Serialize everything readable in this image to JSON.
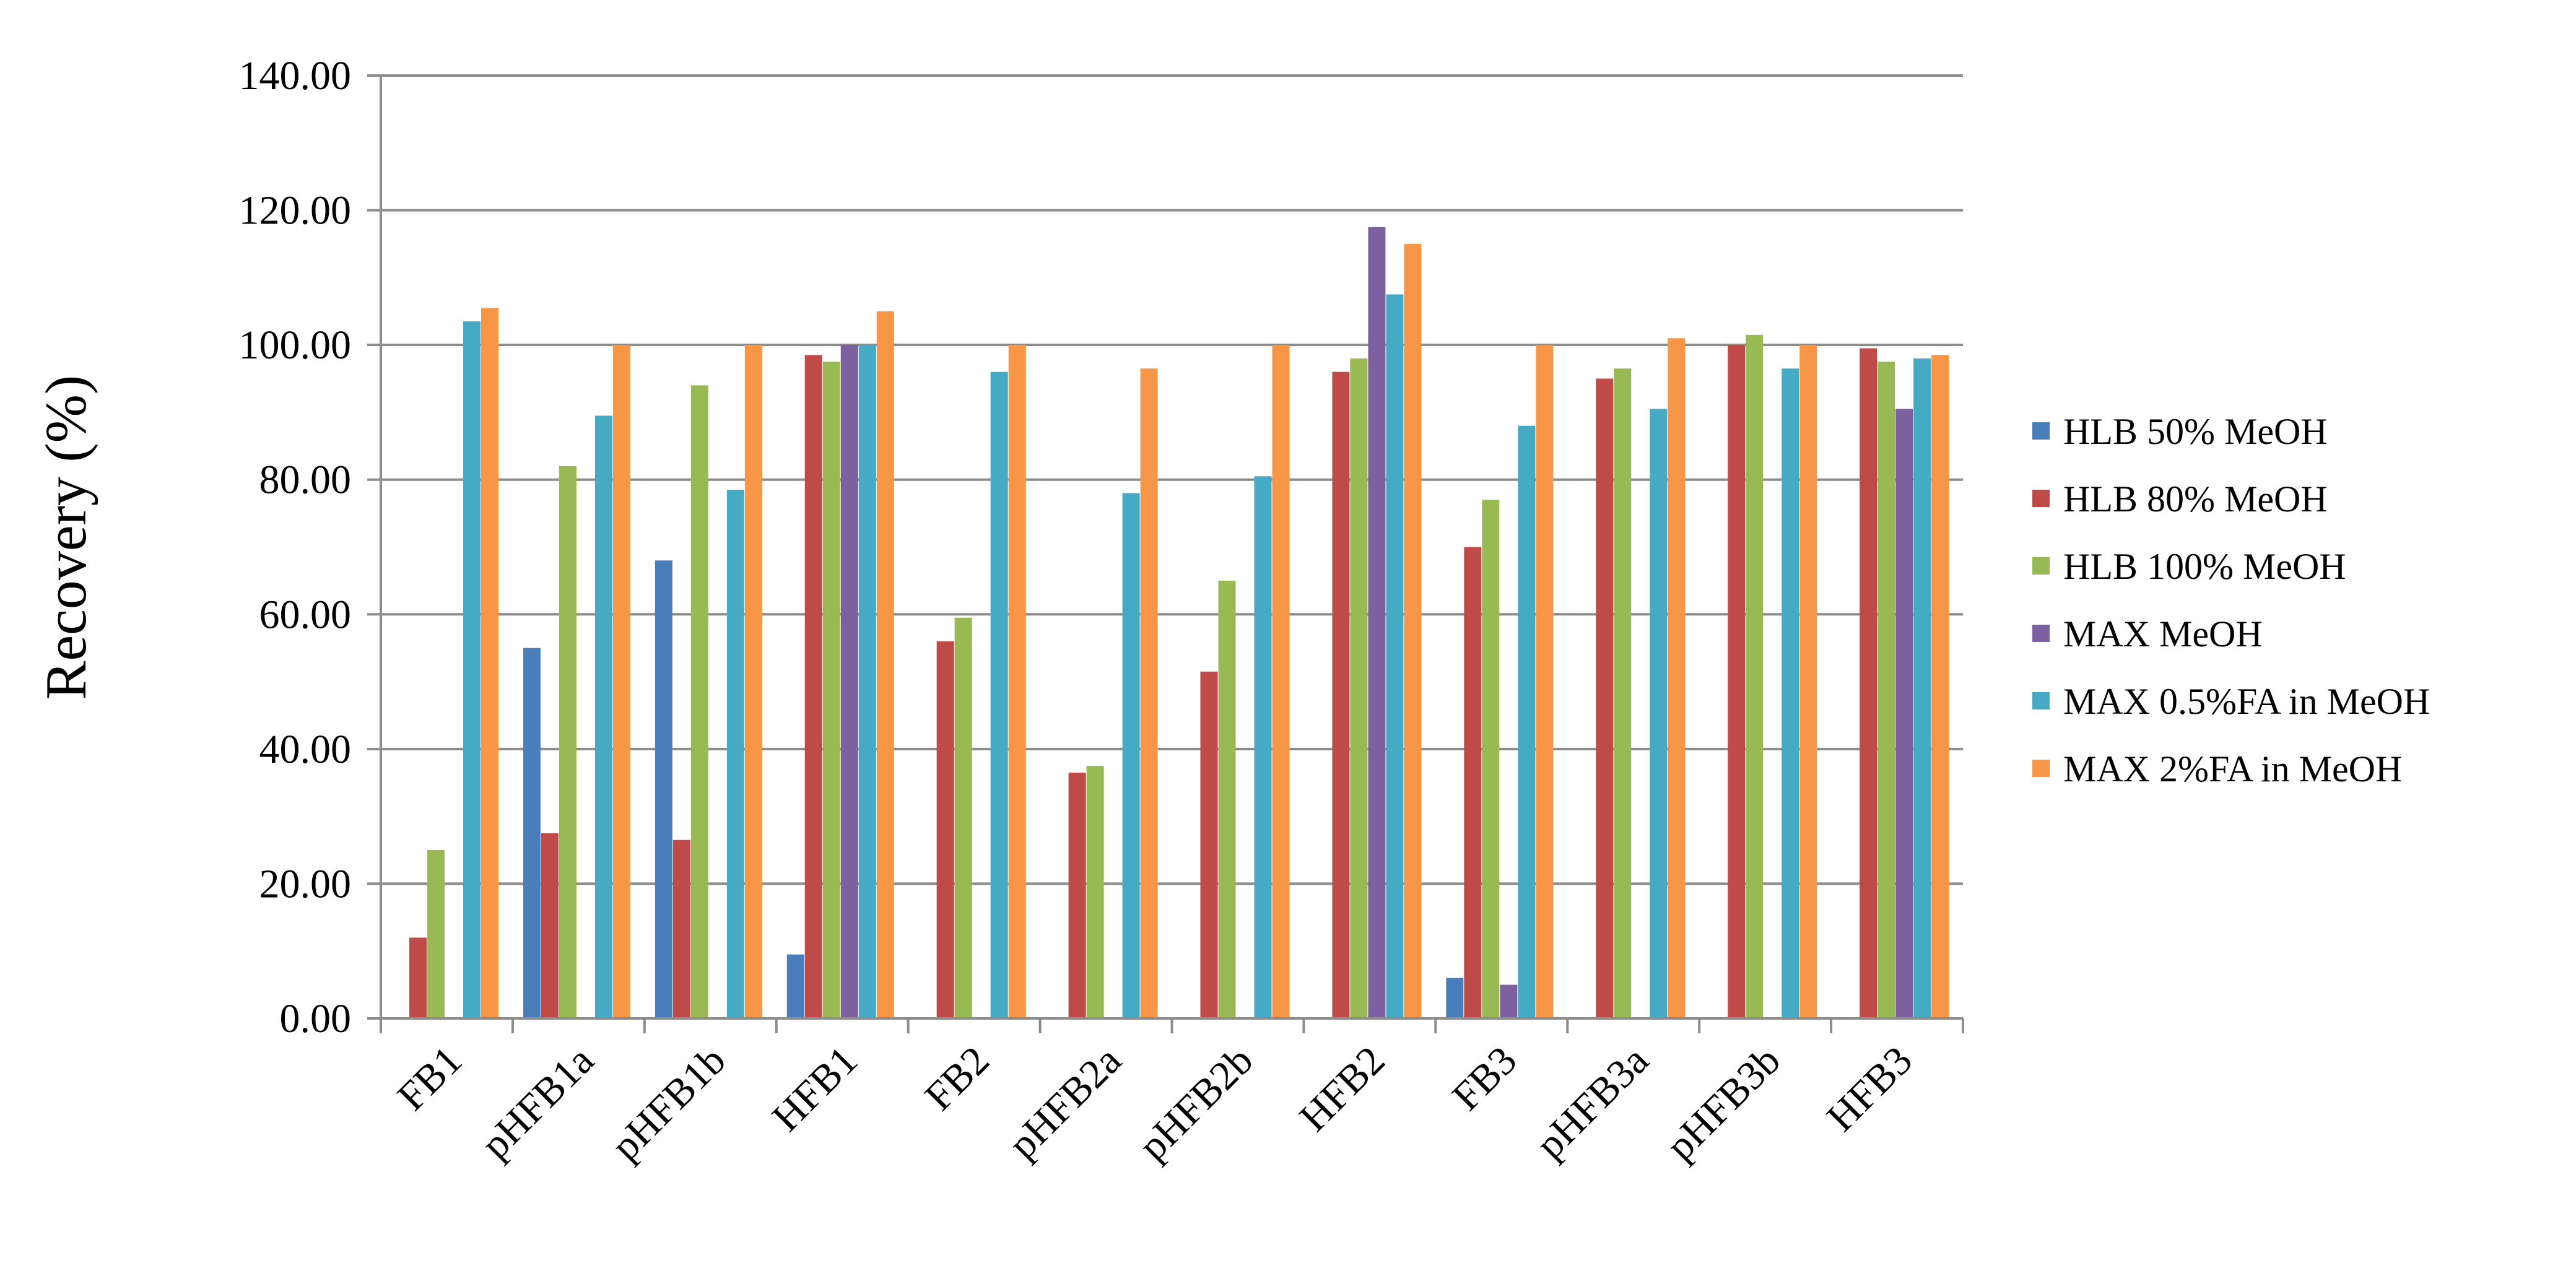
{
  "chart_data": {
    "type": "bar",
    "ylabel": "Recovery (%)",
    "ylim": [
      0,
      140
    ],
    "yticks": [
      0,
      20,
      40,
      60,
      80,
      100,
      120,
      140
    ],
    "ytick_labels": [
      "0.00",
      "20.00",
      "40.00",
      "60.00",
      "80.00",
      "100.00",
      "120.00",
      "140.00"
    ],
    "grid": true,
    "legend_position": "right",
    "categories": [
      "FB1",
      "pHFB1a",
      "pHFB1b",
      "HFB1",
      "FB2",
      "pHFB2a",
      "pHFB2b",
      "HFB2",
      "FB3",
      "pHFB3a",
      "pHFB3b",
      "HFB3"
    ],
    "series": [
      {
        "name": "HLB 50% MeOH",
        "color": "#4A7EBB",
        "values": [
          0,
          55,
          68,
          9.5,
          0,
          0,
          0,
          0,
          6,
          0,
          0,
          0
        ]
      },
      {
        "name": "HLB 80% MeOH",
        "color": "#BE4B48",
        "values": [
          12,
          27.5,
          26.5,
          98.5,
          56,
          36.5,
          51.5,
          96,
          70,
          95,
          100,
          99.5
        ]
      },
      {
        "name": "HLB 100% MeOH",
        "color": "#98B954",
        "values": [
          25,
          82,
          94,
          97.5,
          59.5,
          37.5,
          65,
          98,
          77,
          96.5,
          101.5,
          97.5
        ]
      },
      {
        "name": "MAX MeOH",
        "color": "#7D60A0",
        "values": [
          0,
          0,
          0,
          100,
          0,
          0,
          0,
          117.5,
          5,
          0,
          0,
          90.5
        ]
      },
      {
        "name": "MAX 0.5%FA in MeOH",
        "color": "#46AAC5",
        "values": [
          103.5,
          89.5,
          78.5,
          100,
          96,
          78,
          80.5,
          107.5,
          88,
          90.5,
          96.5,
          98
        ]
      },
      {
        "name": "MAX 2%FA in MeOH",
        "color": "#F79646",
        "values": [
          105.5,
          100,
          100,
          105,
          100,
          96.5,
          100,
          115,
          100,
          101,
          100,
          98.5
        ]
      }
    ]
  }
}
